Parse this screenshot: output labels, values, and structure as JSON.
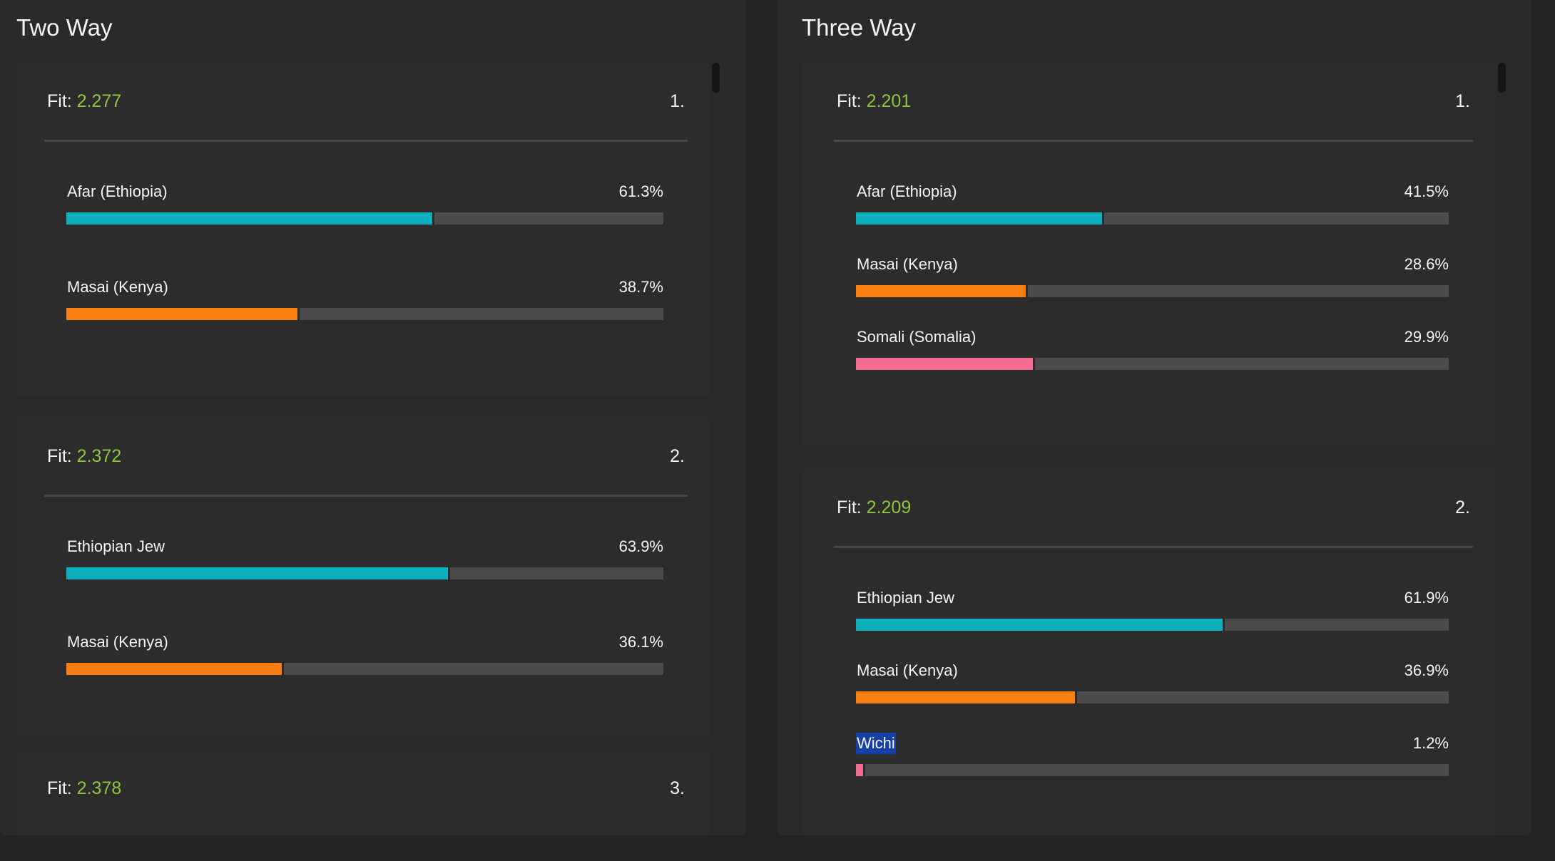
{
  "colors": {
    "teal": "#0fb0bd",
    "orange": "#fa7f12",
    "pink": "#f46b8f",
    "fit_green": "#8cc63f"
  },
  "two_way": {
    "title": "Two Way",
    "fit_label": "Fit:",
    "results": [
      {
        "fit": "2.277",
        "rank": "1.",
        "populations": [
          {
            "name": "Afar (Ethiopia)",
            "percent_label": "61.3%",
            "value": 61.3,
            "color": "#0fb0bd"
          },
          {
            "name": "Masai (Kenya)",
            "percent_label": "38.7%",
            "value": 38.7,
            "color": "#fa7f12"
          }
        ]
      },
      {
        "fit": "2.372",
        "rank": "2.",
        "populations": [
          {
            "name": "Ethiopian Jew",
            "percent_label": "63.9%",
            "value": 63.9,
            "color": "#0fb0bd"
          },
          {
            "name": "Masai (Kenya)",
            "percent_label": "36.1%",
            "value": 36.1,
            "color": "#fa7f12"
          }
        ]
      },
      {
        "fit": "2.378",
        "rank": "3.",
        "populations": []
      }
    ]
  },
  "three_way": {
    "title": "Three Way",
    "fit_label": "Fit:",
    "results": [
      {
        "fit": "2.201",
        "rank": "1.",
        "populations": [
          {
            "name": "Afar (Ethiopia)",
            "percent_label": "41.5%",
            "value": 41.5,
            "color": "#0fb0bd"
          },
          {
            "name": "Masai (Kenya)",
            "percent_label": "28.6%",
            "value": 28.6,
            "color": "#fa7f12"
          },
          {
            "name": "Somali (Somalia)",
            "percent_label": "29.9%",
            "value": 29.9,
            "color": "#f46b8f"
          }
        ]
      },
      {
        "fit": "2.209",
        "rank": "2.",
        "populations": [
          {
            "name": "Ethiopian Jew",
            "percent_label": "61.9%",
            "value": 61.9,
            "color": "#0fb0bd"
          },
          {
            "name": "Masai (Kenya)",
            "percent_label": "36.9%",
            "value": 36.9,
            "color": "#fa7f12"
          },
          {
            "name": "Wichi",
            "percent_label": "1.2%",
            "value": 1.2,
            "color": "#f46b8f",
            "selected": true
          }
        ]
      }
    ]
  }
}
